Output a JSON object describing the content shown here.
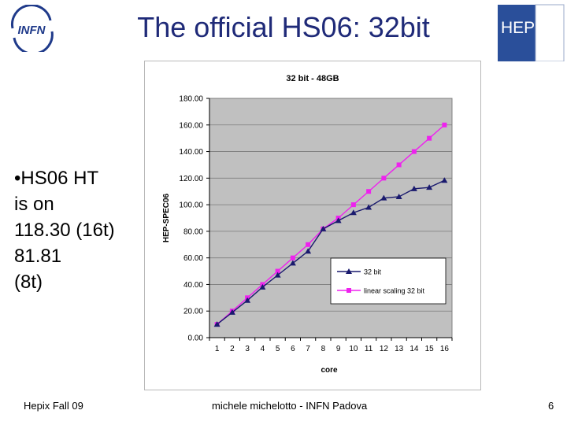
{
  "slide": {
    "title": "The official HS06: 32bit",
    "bullet_text": "•HS06 HT\nis on\n118.30 (16t)\n81.81\n(8t)",
    "logo_left_text": "INFN",
    "logo_right_text": "HEPiX"
  },
  "footer": {
    "left": "Hepix Fall 09",
    "center": "michele michelotto - INFN Padova",
    "page": "6"
  },
  "colors": {
    "title": "#1f2a78",
    "plot_bg": "#c0c0c0",
    "series_32bit": "#1a1a6e",
    "series_linear": "#ee22ee"
  },
  "chart_data": {
    "type": "line",
    "title": "32 bit - 48GB",
    "xlabel": "core",
    "ylabel": "HEP-SPEC06",
    "x": [
      "1",
      "2",
      "3",
      "4",
      "5",
      "6",
      "7",
      "8",
      "9",
      "10",
      "11",
      "12",
      "13",
      "14",
      "15",
      "16"
    ],
    "ylim": [
      0,
      180
    ],
    "yticks": [
      "0.00",
      "20.00",
      "40.00",
      "60.00",
      "80.00",
      "100.00",
      "120.00",
      "140.00",
      "160.00",
      "180.00"
    ],
    "grid": true,
    "legend_position": "center-right",
    "series": [
      {
        "name": "32 bit",
        "marker": "triangle",
        "values": [
          10,
          19,
          28,
          38,
          47,
          56,
          65,
          81.81,
          88,
          94,
          98,
          105,
          106,
          112,
          113,
          118.3
        ]
      },
      {
        "name": "linear scaling 32 bit",
        "marker": "square",
        "values": [
          10,
          20,
          30,
          40,
          50,
          60,
          70,
          81.81,
          90,
          100,
          110,
          120,
          130,
          140,
          150,
          160
        ]
      }
    ]
  }
}
